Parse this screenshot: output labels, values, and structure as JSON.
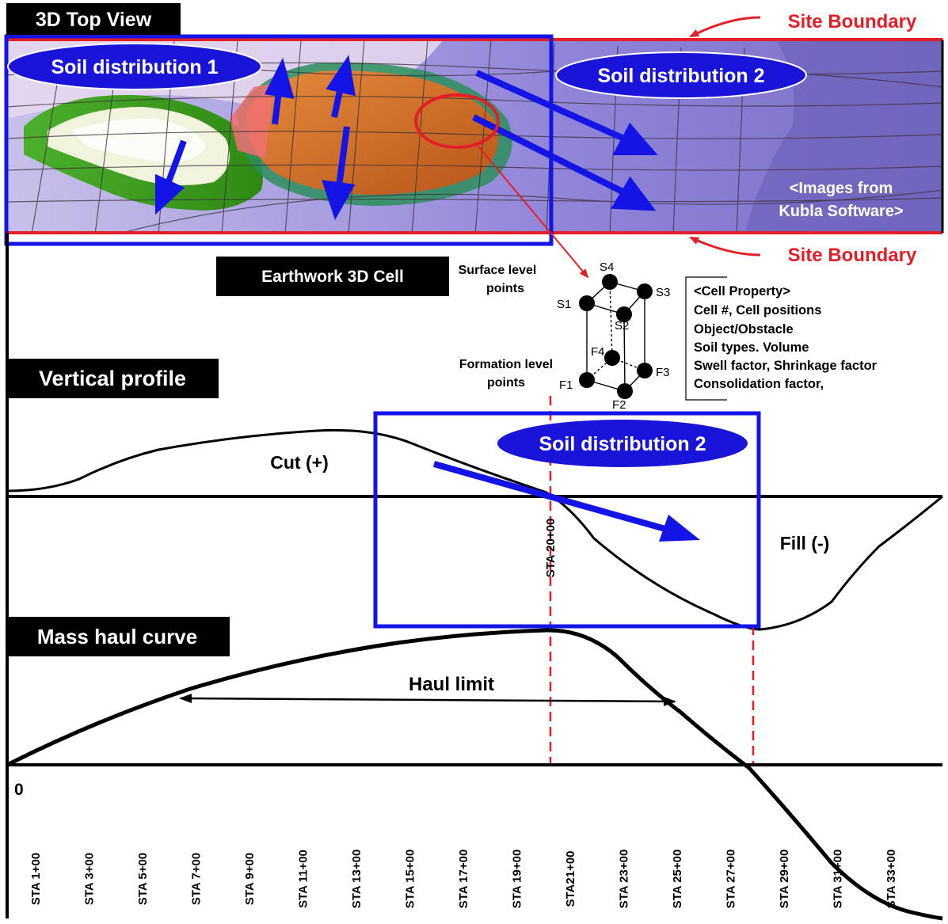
{
  "titles": {
    "top_view": "3D Top View",
    "earthwork_cell": "Earthwork 3D Cell",
    "vertical_profile": "Vertical profile",
    "mass_haul": "Mass haul curve"
  },
  "site_boundary_label": "Site Boundary",
  "soil_labels": {
    "dist1": "Soil distribution 1",
    "dist2_top": "Soil distribution 2",
    "dist2_profile": "Soil distribution 2"
  },
  "image_credit": [
    "<Images from",
    "Kubla Software>"
  ],
  "cell": {
    "surface_label": [
      "Surface level",
      "points"
    ],
    "formation_label": [
      "Formation level",
      "points"
    ],
    "points": [
      "S1",
      "S2",
      "S3",
      "S4",
      "F1",
      "F2",
      "F3",
      "F4"
    ],
    "property_lines": [
      "<Cell Property>",
      "Cell #, Cell positions",
      "Object/Obstacle",
      "Soil types. Volume",
      "Swell factor, Shrinkage factor",
      "Consolidation factor,"
    ]
  },
  "profile": {
    "cut_label": "Cut (+)",
    "fill_label": "Fill (-)",
    "station_marker": "STA 20+00"
  },
  "mass_haul_labels": {
    "haul_limit": "Haul limit",
    "zero": "0"
  },
  "stations": [
    "STA 1+00",
    "STA 3+00",
    "STA 5+00",
    "STA 7+00",
    "STA 9+00",
    "STA 11+00",
    "STA 13+00",
    "STA 15+00",
    "STA 17+00",
    "STA 19+00",
    "STA21+00",
    "STA 23+00",
    "STA 25+00",
    "STA 27+00",
    "STA 29+00",
    "STA 31+00",
    "STA 33+00"
  ],
  "colors": {
    "boundary_red": "#e41e26",
    "blue": "#1414e6",
    "ellipse_blue": "#1a14d8",
    "black": "#000000",
    "terrain_purple": "#8a7fd6",
    "terrain_orange": "#c9621a",
    "terrain_green": "#3c9a1c"
  }
}
